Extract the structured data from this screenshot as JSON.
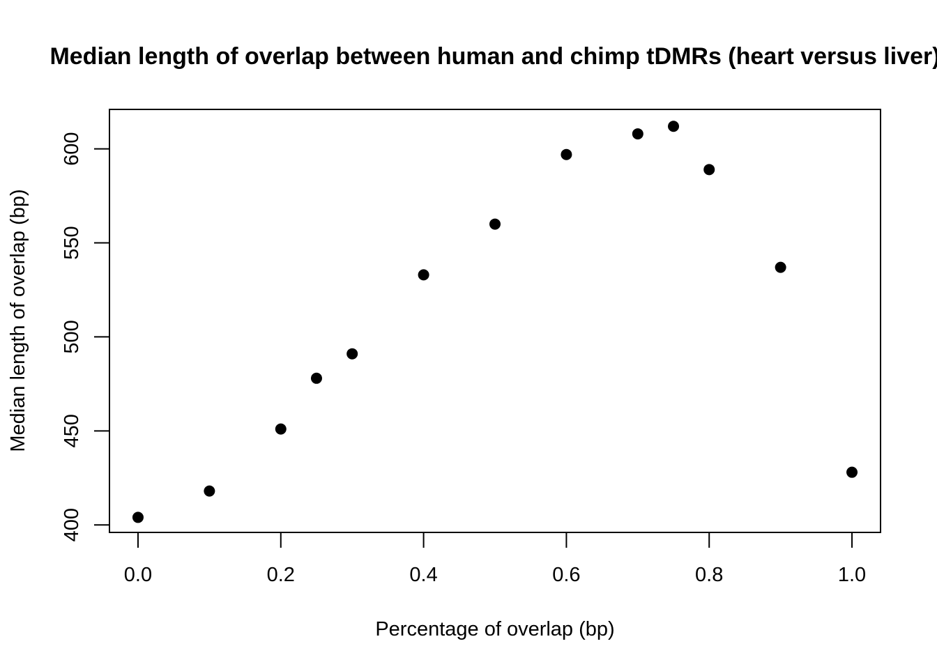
{
  "chart_data": {
    "type": "scatter",
    "title": "Median length of overlap between human and chimp tDMRs (heart versus liver)",
    "xlabel": "Percentage of overlap (bp)",
    "ylabel": "Median length of overlap (bp)",
    "xlim": [
      -0.04,
      1.04
    ],
    "ylim": [
      396,
      621
    ],
    "x_ticks": [
      0.0,
      0.2,
      0.4,
      0.6,
      0.8,
      1.0
    ],
    "x_tick_labels": [
      "0.0",
      "0.2",
      "0.4",
      "0.6",
      "0.8",
      "1.0"
    ],
    "y_ticks": [
      400,
      450,
      500,
      550,
      600
    ],
    "y_tick_labels": [
      "400",
      "450",
      "500",
      "550",
      "600"
    ],
    "grid": false,
    "legend": "none",
    "point_color": "#000000",
    "x": [
      0.0,
      0.1,
      0.2,
      0.25,
      0.3,
      0.4,
      0.5,
      0.6,
      0.7,
      0.75,
      0.8,
      0.9,
      1.0
    ],
    "y": [
      404,
      418,
      451,
      478,
      491,
      533,
      560,
      597,
      608,
      612,
      589,
      537,
      428
    ]
  }
}
